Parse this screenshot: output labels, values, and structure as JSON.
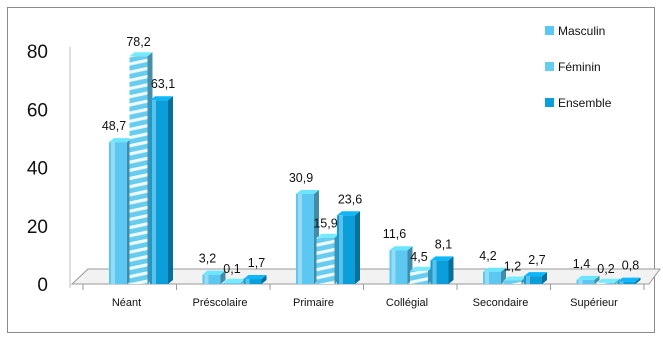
{
  "chart_data": {
    "type": "bar",
    "title": "",
    "xlabel": "",
    "ylabel": "",
    "ylim": [
      0,
      80
    ],
    "yticks": [
      "0",
      "20",
      "40",
      "60",
      "80"
    ],
    "categories": [
      "Néant",
      "Préscolaire",
      "Primaire",
      "Collégial",
      "Secondaire",
      "Supérieur"
    ],
    "series": [
      {
        "name": "Masculin",
        "values": [
          48.7,
          3.2,
          30.9,
          11.6,
          4.2,
          1.4
        ],
        "labels": [
          "48,7",
          "3,2",
          "30,9",
          "11,6",
          "4,2",
          "1,4"
        ]
      },
      {
        "name": "Féminin",
        "values": [
          78.2,
          0.1,
          15.9,
          4.5,
          1.2,
          0.2
        ],
        "labels": [
          "78,2",
          "0,1",
          "15,9",
          "4,5",
          "1,2",
          "0,2"
        ]
      },
      {
        "name": "Ensemble",
        "values": [
          63.1,
          1.7,
          23.6,
          8.1,
          2.7,
          0.8
        ],
        "labels": [
          "63,1",
          "1,7",
          "23,6",
          "8,1",
          "2,7",
          "0,8"
        ]
      }
    ],
    "legend_position": "top-right",
    "grid": false,
    "colors": {
      "Masculin": "#5cc8f2",
      "Féminin": "#66ccf0",
      "Ensemble": "#0a9fdb",
      "floor": "#f2f2f2",
      "floor_edge": "#9a9a9a",
      "stripe": "#ffffff"
    }
  }
}
